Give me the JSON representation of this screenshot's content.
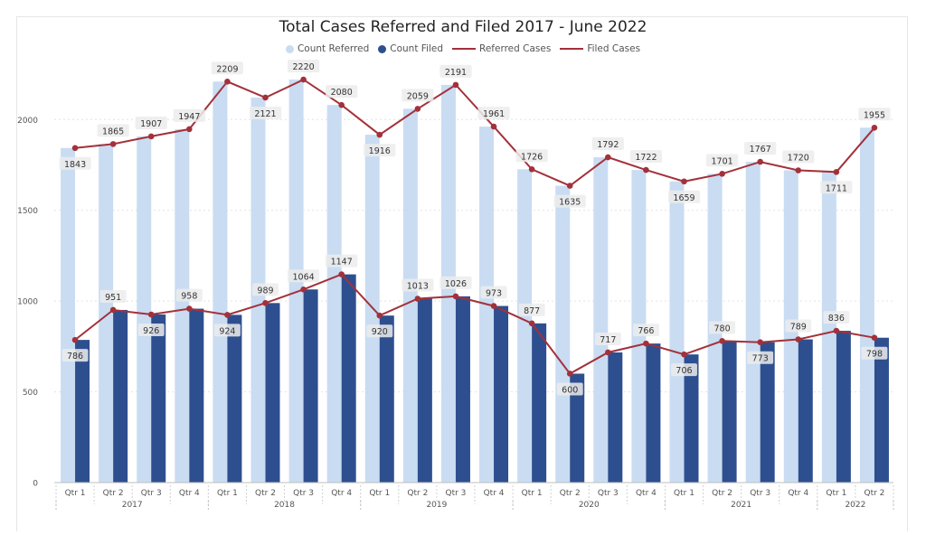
{
  "chart_data": {
    "type": "bar",
    "title": "Total Cases Referred and Filed 2017 - June 2022",
    "legend_position": "top-center",
    "grid": true,
    "ylim": [
      0,
      2300
    ],
    "yticks": [
      0,
      500,
      1000,
      1500,
      2000
    ],
    "categories": [
      "Qtr 1",
      "Qtr 2",
      "Qtr 3",
      "Qtr 4",
      "Qtr 1",
      "Qtr 2",
      "Qtr 3",
      "Qtr 4",
      "Qtr 1",
      "Qtr 2",
      "Qtr 3",
      "Qtr 4",
      "Qtr 1",
      "Qtr 2",
      "Qtr 3",
      "Qtr 4",
      "Qtr 1",
      "Qtr 2",
      "Qtr 3",
      "Qtr 4",
      "Qtr 1",
      "Qtr 2"
    ],
    "years": [
      {
        "label": "2017",
        "count": 4
      },
      {
        "label": "2018",
        "count": 4
      },
      {
        "label": "2019",
        "count": 4
      },
      {
        "label": "2020",
        "count": 4
      },
      {
        "label": "2021",
        "count": 4
      },
      {
        "label": "2022",
        "count": 2
      }
    ],
    "series": [
      {
        "name": "Count Referred",
        "kind": "bar",
        "color": "#c9dcf2",
        "values": [
          1843,
          1865,
          1907,
          1947,
          2209,
          2121,
          2220,
          2080,
          1916,
          2059,
          2191,
          1961,
          1726,
          1635,
          1792,
          1722,
          1659,
          1701,
          1767,
          1720,
          1711,
          1955
        ]
      },
      {
        "name": "Count Filed",
        "kind": "bar",
        "color": "#2e4f8f",
        "values": [
          786,
          951,
          926,
          958,
          924,
          989,
          1064,
          1147,
          920,
          1013,
          1026,
          973,
          877,
          600,
          717,
          766,
          706,
          780,
          773,
          789,
          836,
          798
        ]
      },
      {
        "name": "Referred Cases",
        "kind": "line",
        "color": "#a3313a",
        "values": [
          1843,
          1865,
          1907,
          1947,
          2209,
          2121,
          2220,
          2080,
          1916,
          2059,
          2191,
          1961,
          1726,
          1635,
          1792,
          1722,
          1659,
          1701,
          1767,
          1720,
          1711,
          1955
        ]
      },
      {
        "name": "Filed Cases",
        "kind": "line",
        "color": "#a3313a",
        "values": [
          786,
          951,
          926,
          958,
          924,
          989,
          1064,
          1147,
          920,
          1013,
          1026,
          973,
          877,
          600,
          717,
          766,
          706,
          780,
          773,
          789,
          836,
          798
        ]
      }
    ],
    "referred_label_below": [
      true,
      false,
      false,
      false,
      false,
      true,
      false,
      false,
      true,
      false,
      false,
      false,
      false,
      true,
      false,
      false,
      true,
      false,
      false,
      false,
      true,
      false
    ],
    "filed_label_below": [
      true,
      false,
      true,
      false,
      true,
      false,
      false,
      false,
      true,
      false,
      false,
      false,
      false,
      true,
      false,
      false,
      true,
      false,
      true,
      false,
      false,
      true
    ]
  }
}
